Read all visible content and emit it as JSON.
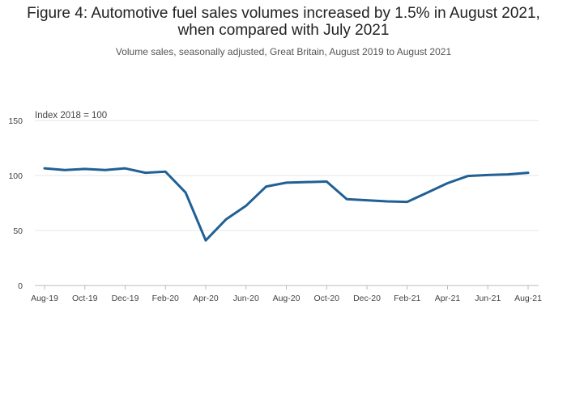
{
  "chart_data": {
    "type": "line",
    "title_line1": "Figure 4: Automotive fuel sales volumes increased by 1.5% in August 2021,",
    "title_line2": "when compared with July 2021",
    "subtitle": "Volume sales, seasonally adjusted, Great Britain, August 2019 to August 2021",
    "ylabel": "Index 2018 = 100",
    "xlabel": "",
    "ylim": [
      0,
      150
    ],
    "yticks": [
      0,
      50,
      100,
      150
    ],
    "grid": true,
    "x": [
      "Aug-19",
      "Sep-19",
      "Oct-19",
      "Nov-19",
      "Dec-19",
      "Jan-20",
      "Feb-20",
      "Mar-20",
      "Apr-20",
      "May-20",
      "Jun-20",
      "Jul-20",
      "Aug-20",
      "Sep-20",
      "Oct-20",
      "Nov-20",
      "Dec-20",
      "Jan-21",
      "Feb-21",
      "Mar-21",
      "Apr-21",
      "May-21",
      "Jun-21",
      "Jul-21",
      "Aug-21"
    ],
    "xtick_labels": [
      "Aug-19",
      "Oct-19",
      "Dec-19",
      "Feb-20",
      "Apr-20",
      "Jun-20",
      "Aug-20",
      "Oct-20",
      "Dec-20",
      "Feb-21",
      "Apr-21",
      "Jun-21",
      "Aug-21"
    ],
    "series": [
      {
        "name": "Automotive fuel sales volumes",
        "color": "#206095",
        "values": [
          106.5,
          105.0,
          106.0,
          105.0,
          106.5,
          102.5,
          103.5,
          84.5,
          41.0,
          60.0,
          72.5,
          90.0,
          93.5,
          94.0,
          94.5,
          78.5,
          77.5,
          76.5,
          76.0,
          84.5,
          93.0,
          99.5,
          100.5,
          101.0,
          102.5
        ]
      }
    ]
  }
}
